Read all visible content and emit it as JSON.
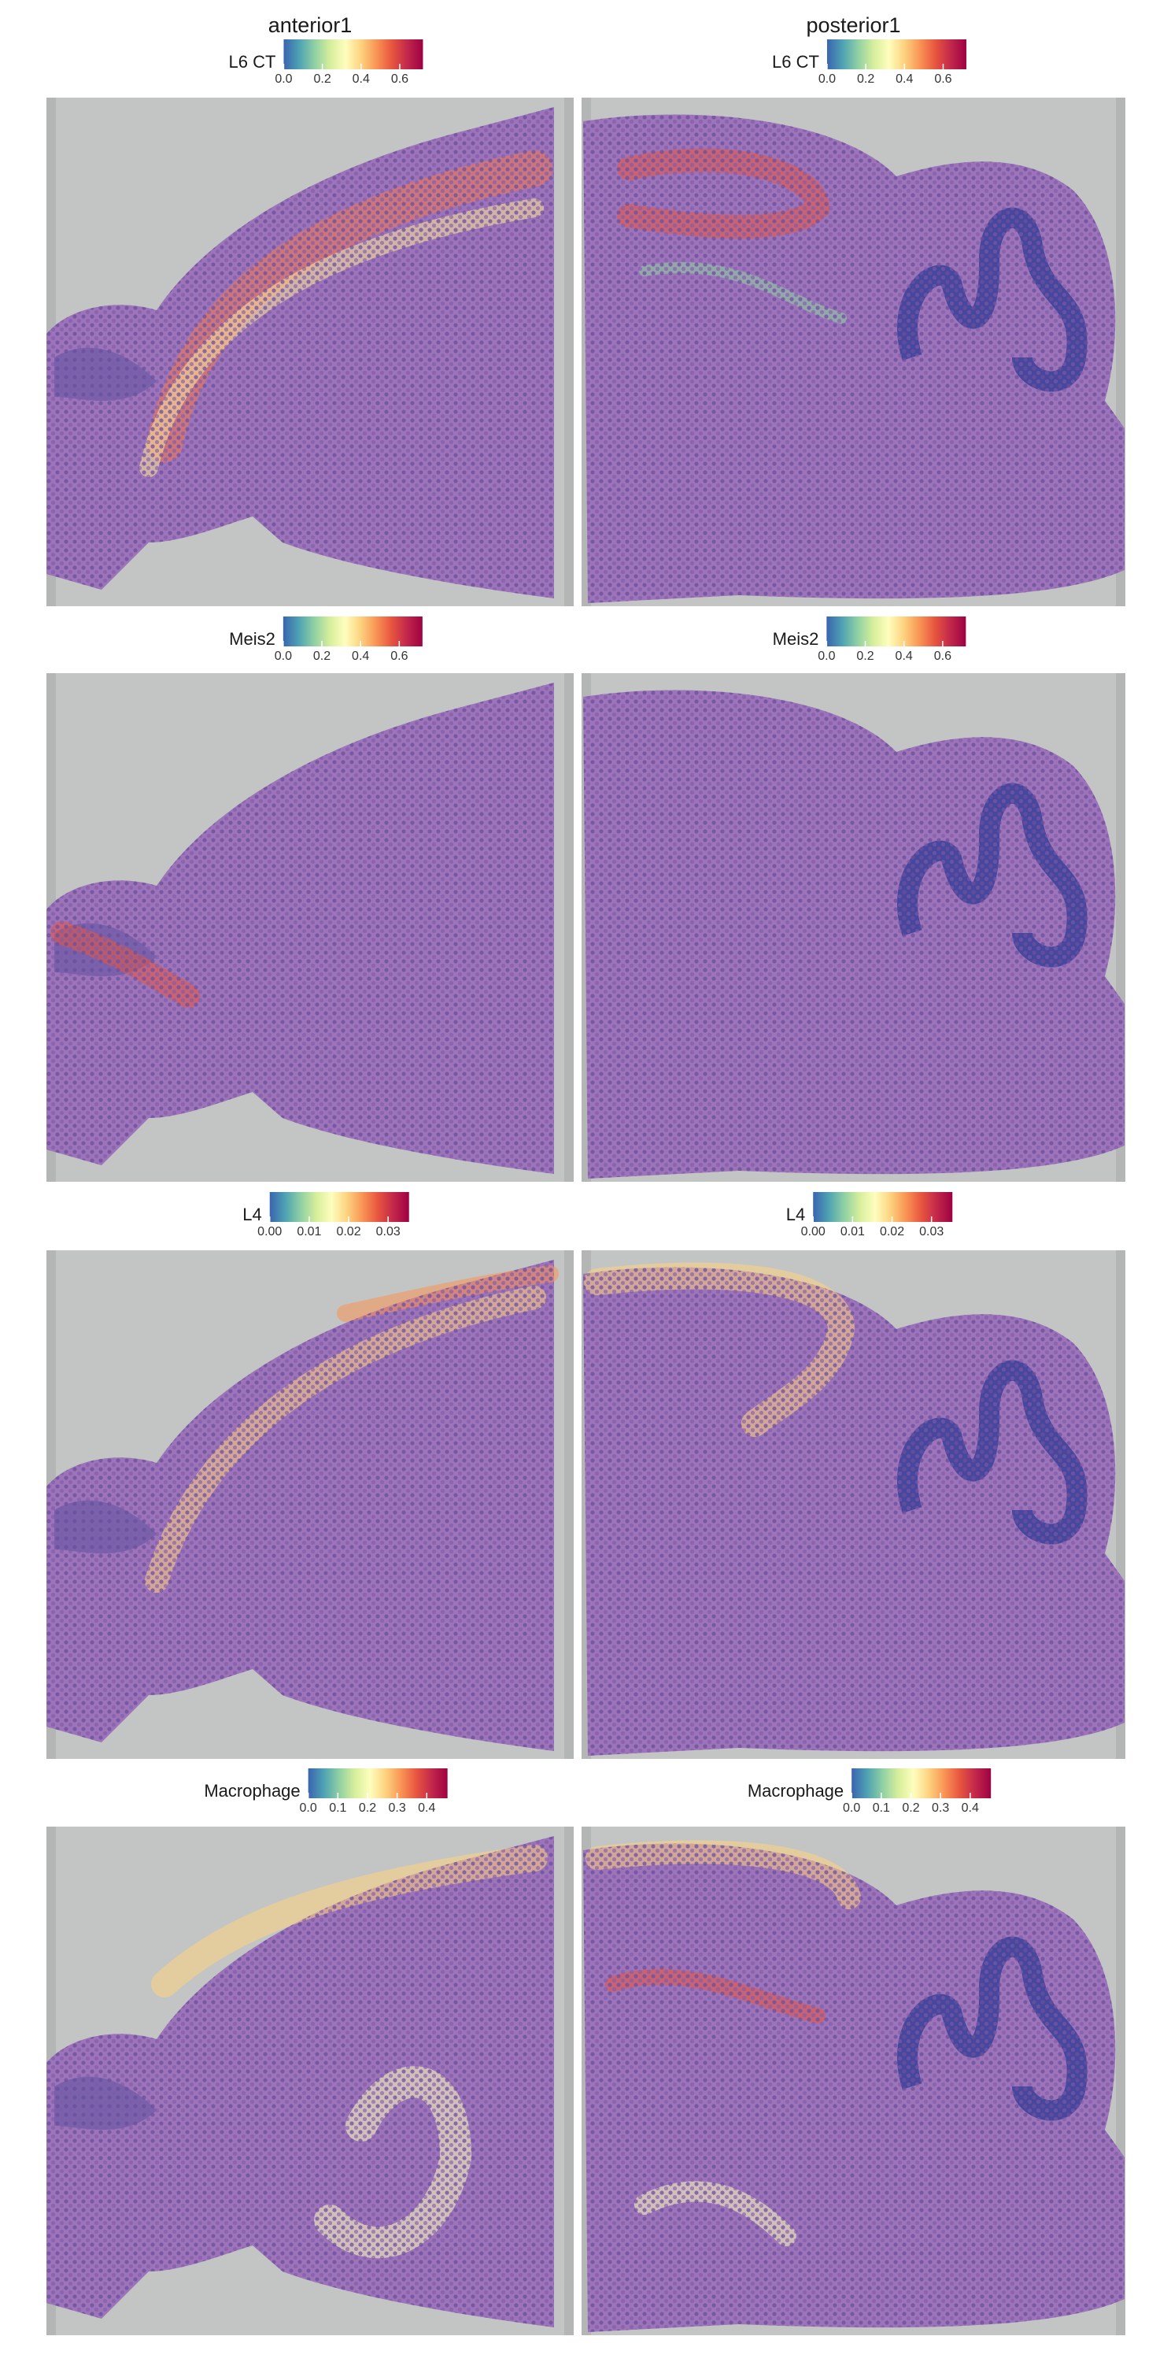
{
  "chart_data": [
    {
      "type": "spatial",
      "title": "anterior1",
      "legend_title": "L6 CT",
      "clim": [
        0,
        0.72
      ],
      "cticks": [
        {
          "value": 0,
          "label": "0.0"
        },
        0.2,
        0.4,
        0.6
      ],
      "colormap": [
        "#3a64b0",
        "#4ea2b3",
        "#8fd0a4",
        "#d6ee9b",
        "#fefebd",
        "#fdd27f",
        "#f99455",
        "#e7553f",
        "#c2274b",
        "#9e0142"
      ]
    },
    {
      "type": "spatial",
      "title": "posterior1",
      "legend_title": "L6 CT",
      "clim": [
        0,
        0.72
      ],
      "cticks": [
        {
          "value": 0,
          "label": "0.0"
        },
        0.2,
        0.4,
        0.6
      ],
      "colormap": [
        "#3a64b0",
        "#4ea2b3",
        "#8fd0a4",
        "#d6ee9b",
        "#fefebd",
        "#fdd27f",
        "#f99455",
        "#e7553f",
        "#c2274b",
        "#9e0142"
      ]
    },
    {
      "type": "spatial",
      "legend_title": "Meis2",
      "clim": [
        0,
        0.72
      ],
      "cticks": [
        {
          "value": 0,
          "label": "0.0"
        },
        0.2,
        0.4,
        0.6
      ],
      "colormap": [
        "#3a64b0",
        "#4ea2b3",
        "#8fd0a4",
        "#d6ee9b",
        "#fefebd",
        "#fdd27f",
        "#f99455",
        "#e7553f",
        "#c2274b",
        "#9e0142"
      ]
    },
    {
      "type": "spatial",
      "legend_title": "Meis2",
      "clim": [
        0,
        0.72
      ],
      "cticks": [
        {
          "value": 0,
          "label": "0.0"
        },
        0.2,
        0.4,
        0.6
      ],
      "colormap": [
        "#3a64b0",
        "#4ea2b3",
        "#8fd0a4",
        "#d6ee9b",
        "#fefebd",
        "#fdd27f",
        "#f99455",
        "#e7553f",
        "#c2274b",
        "#9e0142"
      ]
    },
    {
      "type": "spatial",
      "legend_title": "L4",
      "clim": [
        0,
        0.0353
      ],
      "cticks": [
        {
          "value": 0,
          "label": "0.00"
        },
        0.01,
        0.02,
        0.03
      ],
      "colormap": [
        "#3a64b0",
        "#4ea2b3",
        "#8fd0a4",
        "#d6ee9b",
        "#fefebd",
        "#fdd27f",
        "#f99455",
        "#e7553f",
        "#c2274b",
        "#9e0142"
      ]
    },
    {
      "type": "spatial",
      "legend_title": "L4",
      "clim": [
        0,
        0.0353
      ],
      "cticks": [
        {
          "value": 0,
          "label": "0.00"
        },
        0.01,
        0.02,
        0.03
      ],
      "colormap": [
        "#3a64b0",
        "#4ea2b3",
        "#8fd0a4",
        "#d6ee9b",
        "#fefebd",
        "#fdd27f",
        "#f99455",
        "#e7553f",
        "#c2274b",
        "#9e0142"
      ]
    },
    {
      "type": "spatial",
      "legend_title": "Macrophage",
      "clim": [
        0,
        0.47
      ],
      "cticks": [
        {
          "value": 0,
          "label": "0.0"
        },
        0.1,
        0.2,
        0.3,
        0.4
      ],
      "colormap": [
        "#3a64b0",
        "#4ea2b3",
        "#8fd0a4",
        "#d6ee9b",
        "#fefebd",
        "#fdd27f",
        "#f99455",
        "#e7553f",
        "#c2274b",
        "#9e0142"
      ]
    },
    {
      "type": "spatial",
      "legend_title": "Macrophage",
      "clim": [
        0,
        0.47
      ],
      "cticks": [
        {
          "value": 0,
          "label": "0.0"
        },
        0.1,
        0.2,
        0.3,
        0.4
      ],
      "colormap": [
        "#3a64b0",
        "#4ea2b3",
        "#8fd0a4",
        "#d6ee9b",
        "#fefebd",
        "#fdd27f",
        "#f99455",
        "#e7553f",
        "#c2274b",
        "#9e0142"
      ]
    }
  ]
}
